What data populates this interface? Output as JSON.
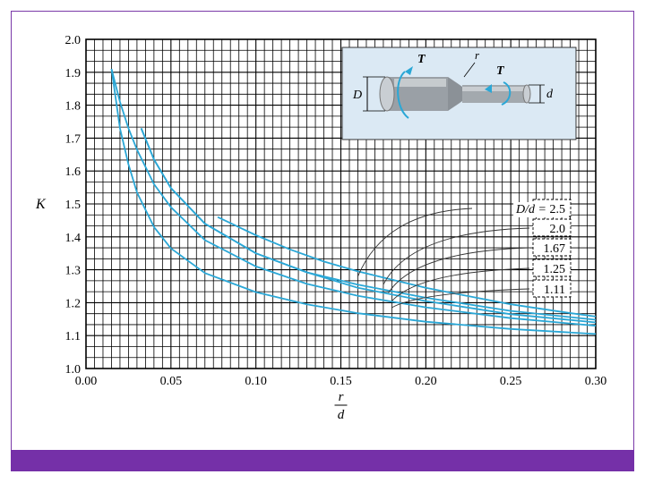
{
  "slide": {
    "accent_color": "#7530a8"
  },
  "chart_data": {
    "type": "line",
    "xlabel_num": "r",
    "xlabel_den": "d",
    "ylabel": "K",
    "xlim": [
      0.0,
      0.3
    ],
    "ylim": [
      1.0,
      2.0
    ],
    "x_ticks": [
      "0.00",
      "0.05",
      "0.10",
      "0.15",
      "0.20",
      "0.25",
      "0.30"
    ],
    "y_ticks": [
      "1.0",
      "1.1",
      "1.2",
      "1.3",
      "1.4",
      "1.5",
      "1.6",
      "1.7",
      "1.8",
      "1.9",
      "2.0"
    ],
    "grid": true,
    "line_color": "#2aa7d6",
    "series_prefix": "D/d = ",
    "series": [
      {
        "name": "2.5",
        "x": [
          0.0775,
          0.1,
          0.12,
          0.14,
          0.16,
          0.18,
          0.2,
          0.22,
          0.25,
          0.28,
          0.3
        ],
        "values": [
          1.46,
          1.405,
          1.362,
          1.325,
          1.295,
          1.27,
          1.245,
          1.225,
          1.195,
          1.172,
          1.158
        ]
      },
      {
        "name": "2.0",
        "x": [
          0.0325,
          0.04,
          0.05,
          0.07,
          0.1,
          0.13,
          0.16,
          0.2,
          0.25,
          0.3
        ],
        "values": [
          1.73,
          1.635,
          1.548,
          1.44,
          1.35,
          1.292,
          1.255,
          1.215,
          1.175,
          1.148
        ]
      },
      {
        "name": "1.67",
        "x": [
          0.0325,
          0.04,
          0.05,
          0.07,
          0.1,
          0.13,
          0.16,
          0.2,
          0.25,
          0.3
        ],
        "values": [
          1.73,
          1.635,
          1.548,
          1.44,
          1.35,
          1.292,
          1.245,
          1.205,
          1.165,
          1.14
        ]
      },
      {
        "name": "1.25",
        "x": [
          0.015,
          0.02,
          0.025,
          0.03,
          0.04,
          0.05,
          0.07,
          0.1,
          0.13,
          0.16,
          0.2,
          0.25,
          0.3
        ],
        "values": [
          1.91,
          1.81,
          1.73,
          1.665,
          1.56,
          1.49,
          1.39,
          1.31,
          1.257,
          1.221,
          1.186,
          1.153,
          1.13
        ]
      },
      {
        "name": "1.11",
        "x": [
          0.015,
          0.02,
          0.025,
          0.03,
          0.04,
          0.05,
          0.07,
          0.1,
          0.13,
          0.16,
          0.2,
          0.25,
          0.3
        ],
        "values": [
          1.91,
          1.73,
          1.62,
          1.535,
          1.43,
          1.365,
          1.29,
          1.232,
          1.195,
          1.168,
          1.142,
          1.12,
          1.105
        ]
      }
    ],
    "inset": {
      "D": "D",
      "d": "d",
      "r": "r",
      "T_left": "T",
      "T_right": "T"
    }
  }
}
